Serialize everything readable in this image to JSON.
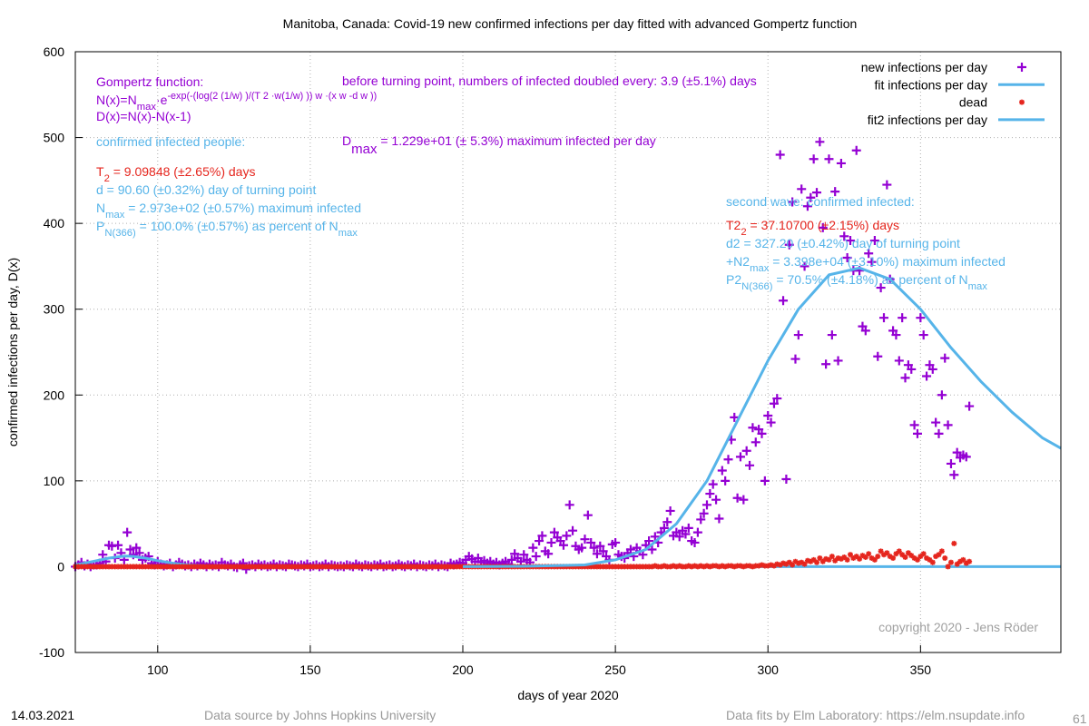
{
  "chart_data": {
    "type": "scatter",
    "title": "Manitoba,  Canada: Covid-19 new confirmed infections per day fitted with advanced Gompertz function",
    "xlabel": "days of year 2020",
    "ylabel": "confirmed infections per day, D(x)",
    "xlim": [
      73,
      396
    ],
    "ylim": [
      -100,
      600
    ],
    "xticks": [
      100,
      150,
      200,
      250,
      300,
      350
    ],
    "yticks": [
      -100,
      0,
      100,
      200,
      300,
      400,
      500,
      600
    ],
    "grid": true,
    "legend": "top-right",
    "x": [
      73,
      74,
      75,
      76,
      77,
      78,
      79,
      80,
      81,
      82,
      83,
      84,
      85,
      86,
      87,
      88,
      89,
      90,
      91,
      92,
      93,
      94,
      95,
      96,
      97,
      98,
      99,
      100,
      101,
      102,
      103,
      104,
      105,
      106,
      107,
      108,
      109,
      110,
      111,
      112,
      113,
      114,
      115,
      116,
      117,
      118,
      119,
      120,
      121,
      122,
      123,
      124,
      125,
      126,
      127,
      128,
      129,
      130,
      131,
      132,
      133,
      134,
      135,
      136,
      137,
      138,
      139,
      140,
      141,
      142,
      143,
      144,
      145,
      146,
      147,
      148,
      149,
      150,
      151,
      152,
      153,
      154,
      155,
      156,
      157,
      158,
      159,
      160,
      161,
      162,
      163,
      164,
      165,
      166,
      167,
      168,
      169,
      170,
      171,
      172,
      173,
      174,
      175,
      176,
      177,
      178,
      179,
      180,
      181,
      182,
      183,
      184,
      185,
      186,
      187,
      188,
      189,
      190,
      191,
      192,
      193,
      194,
      195,
      196,
      197,
      198,
      199,
      200,
      201,
      202,
      203,
      204,
      205,
      206,
      207,
      208,
      209,
      210,
      211,
      212,
      213,
      214,
      215,
      216,
      217,
      218,
      219,
      220,
      221,
      222,
      223,
      224,
      225,
      226,
      227,
      228,
      229,
      230,
      231,
      232,
      233,
      234,
      235,
      236,
      237,
      238,
      239,
      240,
      241,
      242,
      243,
      244,
      245,
      246,
      247,
      248,
      249,
      250,
      251,
      252,
      253,
      254,
      255,
      256,
      257,
      258,
      259,
      260,
      261,
      262,
      263,
      264,
      265,
      266,
      267,
      268,
      269,
      270,
      271,
      272,
      273,
      274,
      275,
      276,
      277,
      278,
      279,
      280,
      281,
      282,
      283,
      284,
      285,
      286,
      287,
      288,
      289,
      290,
      291,
      292,
      293,
      294,
      295,
      296,
      297,
      298,
      299,
      300,
      301,
      302,
      303,
      304,
      305,
      306,
      307,
      308,
      309,
      310,
      311,
      312,
      313,
      314,
      315,
      316,
      317,
      318,
      319,
      320,
      321,
      322,
      323,
      324,
      325,
      326,
      327,
      328,
      329,
      330,
      331,
      332,
      333,
      334,
      335,
      336,
      337,
      338,
      339,
      340,
      341,
      342,
      343,
      344,
      345,
      346,
      347,
      348,
      349,
      350,
      351,
      352,
      353,
      354,
      355,
      356,
      357,
      358,
      359,
      360,
      361,
      362,
      363,
      364,
      365,
      366
    ],
    "series": [
      {
        "name": "new infections per day",
        "color": "#9400d3",
        "marker": "plus",
        "values": [
          0,
          2,
          5,
          1,
          3,
          0,
          2,
          2,
          4,
          14,
          6,
          25,
          24,
          10,
          25,
          16,
          8,
          40,
          20,
          14,
          22,
          16,
          8,
          10,
          12,
          4,
          2,
          6,
          3,
          1,
          2,
          4,
          0,
          2,
          5,
          3,
          1,
          2,
          0,
          3,
          1,
          4,
          2,
          0,
          3,
          1,
          2,
          0,
          5,
          2,
          1,
          3,
          0,
          -1,
          2,
          4,
          -3,
          1,
          2,
          0,
          3,
          1,
          2,
          0,
          1,
          3,
          0,
          2,
          1,
          0,
          3,
          2,
          1,
          0,
          2,
          1,
          3,
          0,
          1,
          2,
          0,
          1,
          3,
          0,
          2,
          1,
          0,
          1,
          0,
          2,
          1,
          0,
          3,
          1,
          0,
          2,
          1,
          0,
          2,
          1,
          3,
          0,
          1,
          2,
          0,
          1,
          3,
          1,
          0,
          2,
          1,
          3,
          0,
          2,
          1,
          0,
          2,
          1,
          3,
          0,
          2,
          1,
          0,
          4,
          2,
          3,
          5,
          4,
          8,
          12,
          9,
          6,
          10,
          5,
          7,
          4,
          6,
          3,
          5,
          2,
          4,
          6,
          3,
          8,
          15,
          10,
          6,
          14,
          8,
          5,
          22,
          12,
          30,
          36,
          18,
          15,
          28,
          40,
          34,
          30,
          25,
          36,
          72,
          42,
          24,
          20,
          22,
          32,
          60,
          28,
          22,
          15,
          24,
          18,
          12,
          8,
          26,
          28,
          14,
          12,
          10,
          16,
          20,
          12,
          22,
          18,
          14,
          25,
          30,
          20,
          35,
          28,
          40,
          45,
          52,
          65,
          36,
          40,
          35,
          42,
          38,
          45,
          30,
          28,
          40,
          55,
          62,
          72,
          85,
          96,
          78,
          56,
          112,
          100,
          125,
          148,
          174,
          80,
          128,
          78,
          135,
          118,
          162,
          145,
          160,
          155,
          100,
          176,
          168,
          190,
          196,
          480,
          310,
          102,
          375,
          425,
          242,
          270,
          440,
          350,
          420,
          430,
          475,
          436,
          495,
          395,
          236,
          475,
          270,
          437,
          240,
          470,
          385,
          360,
          380,
          345,
          485,
          345,
          280,
          275,
          365,
          355,
          380,
          245,
          325,
          290,
          445,
          335,
          275,
          270,
          240,
          290,
          220,
          235,
          230,
          165,
          155,
          290,
          270,
          222,
          235,
          230,
          168,
          155,
          200,
          243,
          165,
          120,
          107,
          133,
          127,
          130,
          128,
          187
        ]
      },
      {
        "name": "fit infections per day",
        "color": "#56b4e9",
        "x": [
          73,
          76,
          80,
          84,
          88,
          90,
          92,
          96,
          100,
          105,
          110,
          115,
          120,
          130,
          140,
          396
        ],
        "values": [
          2,
          4,
          7,
          10,
          12,
          12.3,
          12,
          10,
          7,
          4,
          2,
          1,
          0.5,
          0.1,
          0,
          0
        ]
      },
      {
        "name": "dead",
        "color": "#e5251d",
        "marker": "star",
        "values": [
          0,
          0,
          0,
          0,
          0,
          0,
          0,
          0,
          0,
          0,
          0,
          0,
          0,
          0,
          0,
          0,
          0,
          0,
          0,
          0,
          0,
          0,
          0,
          0,
          0,
          0,
          0,
          0,
          0,
          0,
          0,
          0,
          0,
          0,
          0,
          0,
          0,
          0,
          0,
          0,
          0,
          0,
          0,
          0,
          0,
          0,
          0,
          0,
          0,
          0,
          0,
          0,
          0,
          0,
          0,
          0,
          0,
          0,
          0,
          0,
          0,
          0,
          0,
          0,
          0,
          0,
          0,
          0,
          0,
          0,
          0,
          0,
          0,
          0,
          0,
          0,
          0,
          0,
          0,
          0,
          0,
          0,
          0,
          0,
          0,
          0,
          0,
          0,
          0,
          0,
          0,
          0,
          0,
          0,
          0,
          0,
          0,
          0,
          0,
          0,
          0,
          0,
          0,
          0,
          0,
          0,
          0,
          0,
          0,
          0,
          0,
          0,
          0,
          0,
          0,
          0,
          0,
          0,
          0,
          0,
          0,
          0,
          0,
          0,
          0,
          0,
          0,
          0,
          0,
          0,
          0,
          0,
          0,
          0,
          0,
          0,
          0,
          0,
          0,
          0,
          0,
          0,
          0,
          0,
          0,
          0,
          0,
          0,
          0,
          0,
          0,
          0,
          0,
          0,
          0,
          0,
          0,
          0,
          0,
          0,
          0,
          0,
          0,
          0,
          0,
          0,
          0,
          0,
          0,
          0,
          0,
          0,
          0,
          0,
          0,
          0,
          0,
          0,
          0,
          0,
          0,
          0,
          0,
          0,
          0,
          0,
          0,
          0,
          0,
          0,
          1,
          0,
          0,
          1,
          0,
          0,
          1,
          0,
          1,
          0,
          0,
          1,
          0,
          1,
          0,
          1,
          0,
          1,
          0,
          1,
          1,
          0,
          1,
          0,
          1,
          1,
          0,
          1,
          1,
          0,
          1,
          1,
          0,
          1,
          1,
          2,
          1,
          1,
          2,
          1,
          3,
          2,
          4,
          3,
          5,
          2,
          6,
          4,
          5,
          3,
          7,
          6,
          8,
          5,
          10,
          6,
          9,
          8,
          12,
          7,
          10,
          9,
          11,
          8,
          14,
          10,
          12,
          9,
          13,
          11,
          15,
          10,
          8,
          12,
          18,
          14,
          16,
          12,
          10,
          15,
          18,
          14,
          11,
          16,
          13,
          10,
          8,
          12,
          15,
          10,
          8,
          5,
          12,
          14,
          18,
          10,
          0,
          5,
          27,
          3,
          6,
          8,
          4,
          6
        ]
      },
      {
        "name": "fit2 infections per day",
        "color": "#56b4e9",
        "x": [
          200,
          220,
          240,
          250,
          260,
          270,
          280,
          290,
          300,
          310,
          320,
          330,
          340,
          350,
          360,
          370,
          380,
          390,
          396
        ],
        "values": [
          0,
          0.5,
          2,
          8,
          20,
          50,
          100,
          170,
          240,
          300,
          340,
          348,
          335,
          300,
          255,
          215,
          180,
          150,
          138
        ]
      }
    ],
    "annotations": [
      {
        "color": "#9400d3",
        "parts": [
          "Gompertz function:"
        ]
      },
      {
        "color": "#9400d3",
        "parts": [
          "N(x)=N",
          {
            "sub": "max"
          },
          "·e",
          {
            "sup": "-exp(-(log(2 (1/w) )/(T 2 ·w(1/w) )) w ·(x w -d w ))"
          }
        ]
      },
      {
        "color": "#9400d3",
        "parts": [
          "D(x)=N(x)-N(x-1)"
        ]
      },
      {
        "color": "#56b4e9",
        "parts": [
          "confirmed infected people:"
        ]
      },
      {
        "color": "#e5251d",
        "parts": [
          "T",
          {
            "sub": "2"
          },
          " = 9.09848 (±2.65%) days"
        ]
      },
      {
        "color": "#56b4e9",
        "parts": [
          "d = 90.60 (±0.32%) day of turning point"
        ]
      },
      {
        "color": "#56b4e9",
        "parts": [
          "N",
          {
            "sub": "max"
          },
          " = 2.973e+02 (±0.57%) maximum infected"
        ]
      },
      {
        "color": "#56b4e9",
        "parts": [
          "P",
          {
            "sub": "N(366)"
          },
          " = 100.0% (±0.57%) as percent of N",
          {
            "sub": "max"
          }
        ]
      },
      {
        "color": "#9400d3",
        "parts": [
          "before turning point, numbers of infected doubled every: 3.9 (±5.1%) days"
        ]
      },
      {
        "color": "#9400d3",
        "parts": [
          "D",
          {
            "sub": "max"
          },
          " = 1.229e+01 (± 5.3%) maximum infected per day"
        ]
      },
      {
        "color": "#56b4e9",
        "parts": [
          "second wave: confirmed infected:"
        ]
      },
      {
        "color": "#e5251d",
        "parts": [
          "T2",
          {
            "sub": "2"
          },
          " = 37.10700 (±2.15%) days"
        ]
      },
      {
        "color": "#56b4e9",
        "parts": [
          "d2 = 327.20 (±0.42%) day of turning point"
        ]
      },
      {
        "color": "#56b4e9",
        "parts": [
          "+N2",
          {
            "sub": "max"
          },
          " = 3.398e+04 (±3.10%) maximum infected"
        ]
      },
      {
        "color": "#56b4e9",
        "parts": [
          "P2",
          {
            "sub": "N(366)"
          },
          " = 70.5% (±4.18%) as percent of N",
          {
            "sub": "max"
          }
        ]
      },
      {
        "color": "#a0a0a0",
        "parts": [
          "copyright 2020 - Jens Röder"
        ]
      }
    ]
  },
  "footer": {
    "date": "14.03.2021",
    "source": "Data source by Johns Hopkins University",
    "fits": "Data fits by Elm Laboratory: https://elm.nsupdate.info",
    "page": "61"
  }
}
